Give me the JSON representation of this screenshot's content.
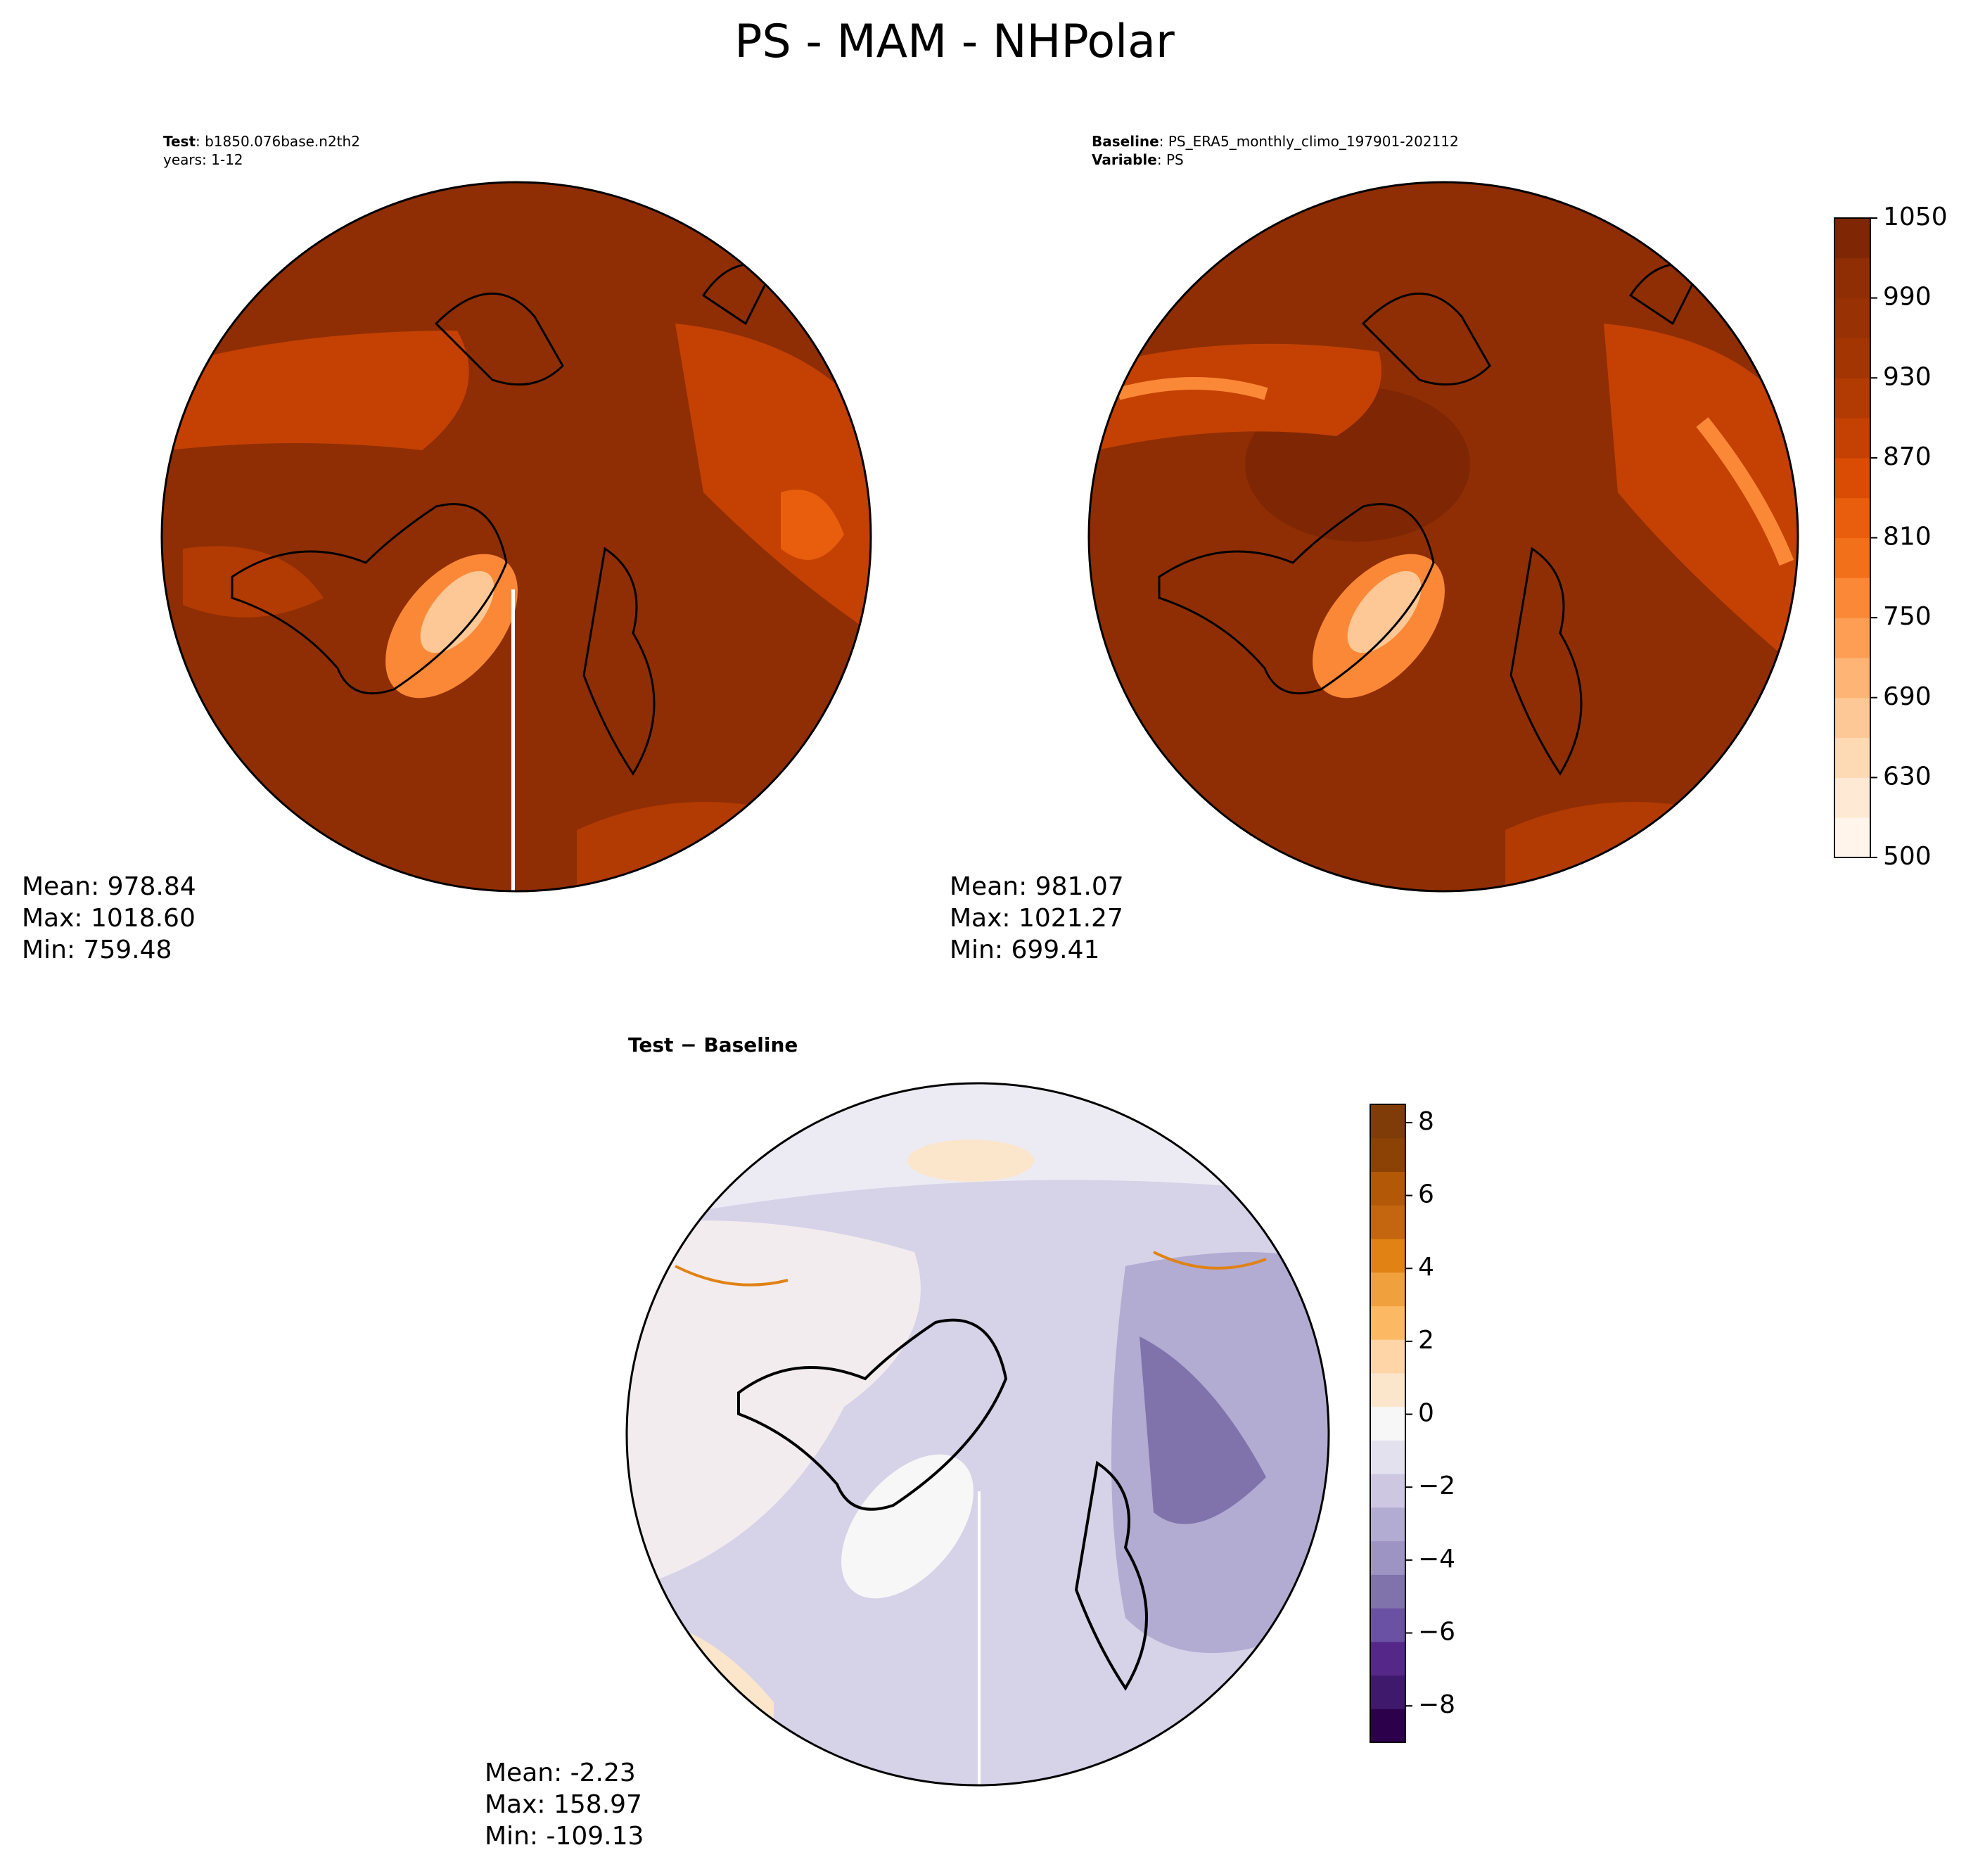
{
  "title": "PS - MAM - NHPolar",
  "panels": [
    {
      "header": [
        {
          "bold": "Test",
          "text": ": b1850.076base.n2th2"
        },
        {
          "text": "years: 1-12"
        }
      ],
      "stats": [
        "Mean: 978.84",
        "Max: 1018.60",
        "Min: 759.48"
      ]
    },
    {
      "header": [
        {
          "bold": "Baseline",
          "text": ": PS_ERA5_monthly_climo_197901-202112"
        },
        {
          "bold": "Variable",
          "text": ": PS"
        }
      ],
      "stats": [
        "Mean: 981.07",
        "Max: 1021.27",
        "Min: 699.41"
      ]
    },
    {
      "header": [
        {
          "bold": "Test − Baseline"
        }
      ],
      "stats": [
        "Mean: -2.23",
        "Max: 158.97",
        "Min: -109.13"
      ]
    }
  ],
  "colorbars": [
    {
      "ticks": [
        500,
        630,
        690,
        750,
        810,
        870,
        930,
        990,
        1050
      ],
      "colors": [
        "#fff5eb",
        "#fee9d4",
        "#fdd9b4",
        "#fdc895",
        "#fdb474",
        "#fd9e54",
        "#fb8836",
        "#f3701b",
        "#e95e0d",
        "#da4c03",
        "#c44103",
        "#b23a03",
        "#a33503",
        "#983103",
        "#8f2e04",
        "#7f2704"
      ]
    },
    {
      "lim": [
        -9,
        8.5
      ],
      "ticks": [
        {
          "value": -8,
          "label": "−8"
        },
        {
          "value": -6,
          "label": "−6"
        },
        {
          "value": -4,
          "label": "−4"
        },
        {
          "value": -2,
          "label": "−2"
        },
        0,
        2,
        4,
        6,
        8
      ],
      "colors": [
        "#2d004b",
        "#3f1a6c",
        "#542788",
        "#6a51a3",
        "#8073ac",
        "#9e94c4",
        "#b2abd2",
        "#cdc7e2",
        "#e4e1ef",
        "#f7f7f7",
        "#fbe6cc",
        "#fdd5a6",
        "#fdb863",
        "#f0a03c",
        "#e08214",
        "#c46510",
        "#b35806",
        "#8c4205",
        "#7f3b08"
      ]
    }
  ]
}
